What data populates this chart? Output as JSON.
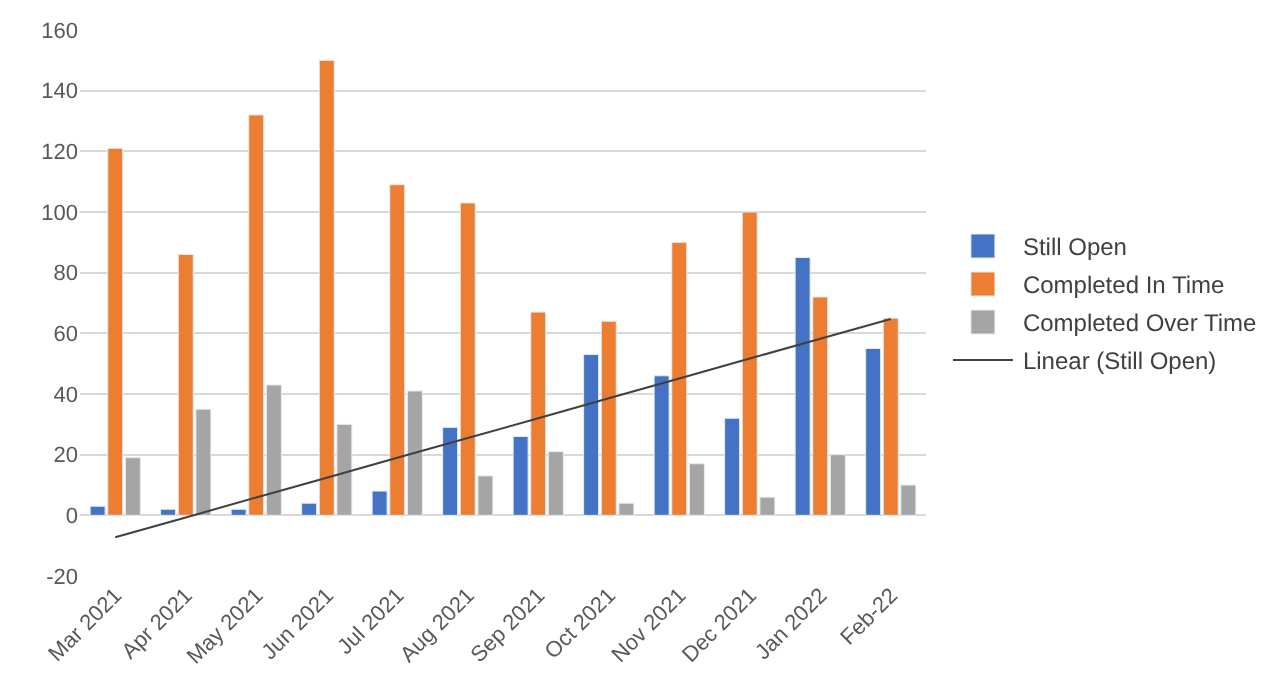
{
  "chart_data": {
    "type": "bar",
    "categories": [
      "Mar 2021",
      "Apr 2021",
      "May 2021",
      "Jun 2021",
      "Jul 2021",
      "Aug 2021",
      "Sep 2021",
      "Oct 2021",
      "Nov 2021",
      "Dec 2021",
      "Jan 2022",
      "Feb-22"
    ],
    "series": [
      {
        "name": "Still Open",
        "color": "#4472c4",
        "values": [
          3,
          2,
          2,
          4,
          8,
          29,
          26,
          53,
          46,
          32,
          85,
          55
        ]
      },
      {
        "name": "Completed In Time",
        "color": "#ed7d31",
        "values": [
          121,
          86,
          132,
          150,
          109,
          103,
          67,
          64,
          90,
          100,
          72,
          65
        ]
      },
      {
        "name": "Completed Over Time",
        "color": "#a5a5a5",
        "values": [
          19,
          35,
          43,
          30,
          41,
          13,
          21,
          4,
          17,
          6,
          20,
          10
        ]
      },
      {
        "name": "Linear (Still Open)",
        "type": "line",
        "color": "#404040",
        "values": [
          -7.2,
          -0.7,
          5.9,
          12.4,
          19.0,
          25.5,
          32.0,
          38.6,
          45.1,
          51.7,
          58.2,
          64.7
        ]
      }
    ],
    "ylim": [
      -20,
      160
    ],
    "yticks": [
      -20,
      0,
      20,
      40,
      60,
      80,
      100,
      120,
      140,
      160
    ],
    "grid": "y",
    "legend": "right"
  }
}
